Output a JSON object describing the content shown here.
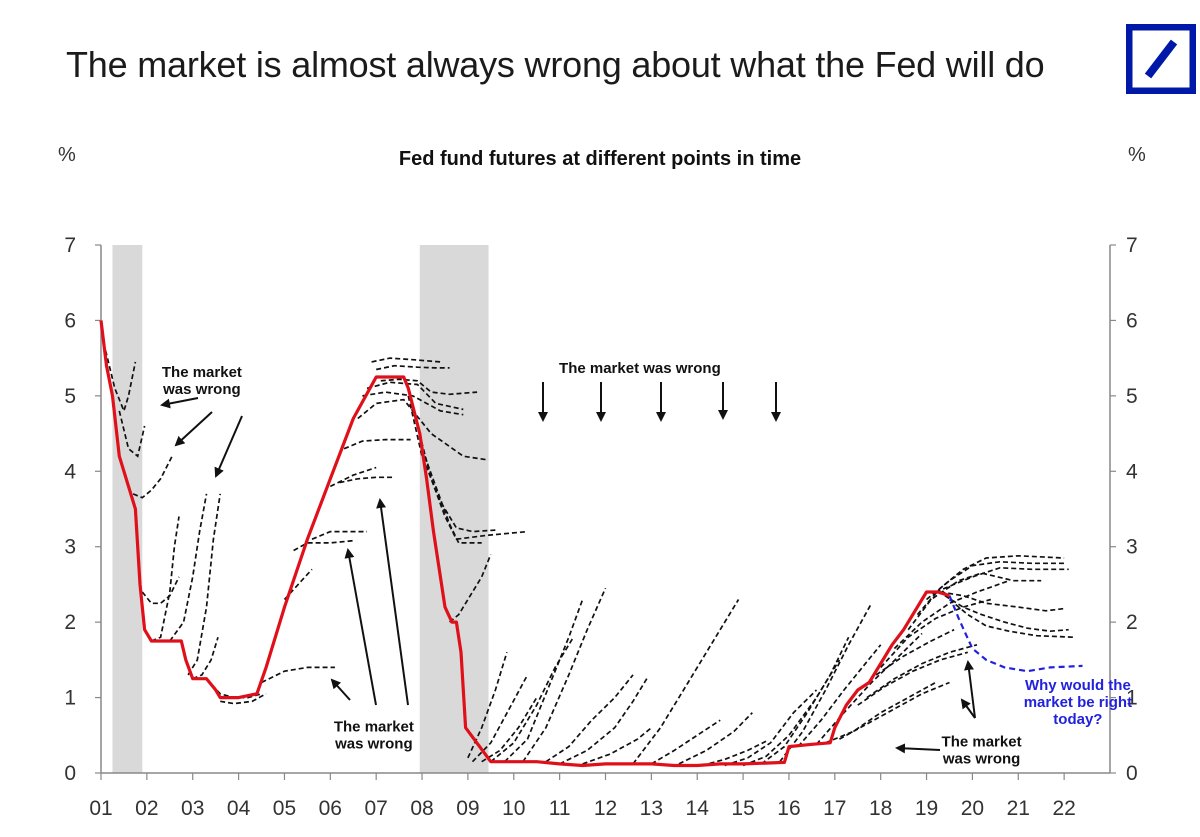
{
  "headline": "The market is almost always wrong about what the Fed will do",
  "logo_icon": "deutsche-bank-logo-icon",
  "colors": {
    "policy": "#e0101a",
    "futures": "#111111",
    "current": "#2222dd",
    "recession": "#d9d9d9",
    "logo": "#0018a8"
  },
  "chart_data": {
    "type": "line",
    "title": "Fed fund futures at different points in time",
    "ylabel_left": "%",
    "ylabel_right": "%",
    "xlabel": "",
    "xlim": [
      2001,
      2023
    ],
    "ylim": [
      0,
      7
    ],
    "x_tick_labels": [
      "01",
      "02",
      "03",
      "04",
      "05",
      "06",
      "07",
      "08",
      "09",
      "10",
      "11",
      "12",
      "13",
      "14",
      "15",
      "16",
      "17",
      "18",
      "19",
      "20",
      "21",
      "22"
    ],
    "y_ticks": [
      0,
      1,
      2,
      3,
      4,
      5,
      6,
      7
    ],
    "grid": false,
    "recessions": [
      [
        2001.25,
        2001.9
      ],
      [
        2007.95,
        2009.45
      ]
    ],
    "annotations": [
      {
        "text": "The market\nwas wrong",
        "x": 2003.2,
        "y": 5.25
      },
      {
        "text": "The market was wrong",
        "x": 2012.75,
        "y": 5.3
      },
      {
        "text": "The market\nwas wrong",
        "x": 2006.95,
        "y": 0.55
      },
      {
        "text": "The market\nwas wrong",
        "x": 2020.2,
        "y": 0.35
      },
      {
        "text": "Why would the\nmarket be right\ntoday?",
        "x": 2022.3,
        "y": 1.1,
        "color": "current"
      }
    ],
    "series": [
      {
        "role": "policy",
        "x": [
          2001.0,
          2001.12,
          2001.25,
          2001.4,
          2001.55,
          2001.75,
          2001.85,
          2001.95,
          2002.1,
          2002.5,
          2002.75,
          2002.85,
          2003.0,
          2003.3,
          2003.5,
          2003.6,
          2004.0,
          2004.4,
          2004.6,
          2005.0,
          2005.5,
          2006.0,
          2006.5,
          2007.0,
          2007.6,
          2007.7,
          2007.95,
          2008.1,
          2008.25,
          2008.35,
          2008.5,
          2008.65,
          2008.75,
          2008.85,
          2008.95,
          2009.5,
          2010.0,
          2010.5,
          2011.0,
          2011.5,
          2012.0,
          2012.5,
          2013.0,
          2013.5,
          2014.0,
          2014.5,
          2015.0,
          2015.9,
          2016.0,
          2016.5,
          2016.9,
          2017.0,
          2017.25,
          2017.5,
          2017.75,
          2018.0,
          2018.25,
          2018.5,
          2018.75,
          2019.0,
          2019.25,
          2019.5
        ],
        "y": [
          6.0,
          5.4,
          5.0,
          4.2,
          3.9,
          3.5,
          2.5,
          1.9,
          1.75,
          1.75,
          1.75,
          1.5,
          1.25,
          1.25,
          1.1,
          1.0,
          1.0,
          1.05,
          1.4,
          2.2,
          3.1,
          3.9,
          4.7,
          5.25,
          5.25,
          5.1,
          4.5,
          3.9,
          3.2,
          2.8,
          2.2,
          2.0,
          2.0,
          1.6,
          0.6,
          0.15,
          0.15,
          0.15,
          0.12,
          0.1,
          0.12,
          0.12,
          0.12,
          0.1,
          0.1,
          0.12,
          0.12,
          0.14,
          0.35,
          0.38,
          0.4,
          0.6,
          0.9,
          1.1,
          1.2,
          1.45,
          1.7,
          1.9,
          2.15,
          2.4,
          2.4,
          2.35
        ]
      },
      {
        "role": "current",
        "x": [
          2019.5,
          2019.7,
          2019.85,
          2020.0,
          2020.3,
          2020.7,
          2021.2,
          2021.7,
          2022.4
        ],
        "y": [
          2.35,
          2.05,
          1.85,
          1.65,
          1.5,
          1.4,
          1.35,
          1.4,
          1.42
        ]
      },
      {
        "role": "futures",
        "x": [
          2001.1,
          2001.3,
          2001.5,
          2001.6,
          2001.75
        ],
        "y": [
          5.6,
          5.1,
          4.8,
          5.0,
          5.45
        ]
      },
      {
        "role": "futures",
        "x": [
          2001.4,
          2001.6,
          2001.8,
          2001.95
        ],
        "y": [
          4.8,
          4.3,
          4.2,
          4.6
        ]
      },
      {
        "role": "futures",
        "x": [
          2001.7,
          2001.9,
          2002.1,
          2002.3,
          2002.55
        ],
        "y": [
          3.7,
          3.65,
          3.75,
          3.9,
          4.2
        ]
      },
      {
        "role": "futures",
        "x": [
          2001.9,
          2002.1,
          2002.3,
          2002.5,
          2002.7
        ],
        "y": [
          2.4,
          2.25,
          2.25,
          2.35,
          2.6
        ]
      },
      {
        "role": "futures",
        "x": [
          2002.1,
          2002.3,
          2002.5,
          2002.6,
          2002.7
        ],
        "y": [
          1.75,
          1.8,
          2.4,
          3.0,
          3.4
        ]
      },
      {
        "role": "futures",
        "x": [
          2002.5,
          2002.8,
          2003.0,
          2003.15,
          2003.3
        ],
        "y": [
          1.75,
          2.0,
          2.6,
          3.2,
          3.7
        ]
      },
      {
        "role": "futures",
        "x": [
          2002.9,
          2003.1,
          2003.3,
          2003.45,
          2003.6
        ],
        "y": [
          1.3,
          1.5,
          2.2,
          3.1,
          3.7
        ]
      },
      {
        "role": "futures",
        "x": [
          2003.0,
          2003.2,
          2003.4,
          2003.55
        ],
        "y": [
          1.25,
          1.3,
          1.5,
          1.8
        ]
      },
      {
        "role": "futures",
        "x": [
          2003.3,
          2003.6,
          2003.9,
          2004.2,
          2004.5
        ],
        "y": [
          1.25,
          1.05,
          1.0,
          1.0,
          1.05
        ]
      },
      {
        "role": "futures",
        "x": [
          2003.6,
          2003.9,
          2004.3,
          2004.6
        ],
        "y": [
          0.95,
          0.92,
          0.95,
          1.05
        ]
      },
      {
        "role": "futures",
        "x": [
          2004.5,
          2005.0,
          2005.5,
          2006.0,
          2006.1
        ],
        "y": [
          1.2,
          1.35,
          1.4,
          1.4,
          1.4
        ]
      },
      {
        "role": "futures",
        "x": [
          2005.0,
          2005.3,
          2005.6
        ],
        "y": [
          2.3,
          2.5,
          2.7
        ]
      },
      {
        "role": "futures",
        "x": [
          2005.2,
          2005.5,
          2006.0,
          2006.5
        ],
        "y": [
          2.95,
          3.05,
          3.05,
          3.08
        ]
      },
      {
        "role": "futures",
        "x": [
          2005.6,
          2006.0,
          2006.4,
          2006.8
        ],
        "y": [
          3.1,
          3.2,
          3.2,
          3.2
        ]
      },
      {
        "role": "futures",
        "x": [
          2006.0,
          2006.5,
          2007.0
        ],
        "y": [
          3.8,
          3.95,
          4.05
        ]
      },
      {
        "role": "futures",
        "x": [
          2006.2,
          2006.6,
          2007.0,
          2007.35
        ],
        "y": [
          3.85,
          3.9,
          3.92,
          3.92
        ]
      },
      {
        "role": "futures",
        "x": [
          2006.3,
          2006.7,
          2007.2,
          2007.75
        ],
        "y": [
          4.3,
          4.4,
          4.42,
          4.42
        ]
      },
      {
        "role": "futures",
        "x": [
          2006.6,
          2007.0,
          2007.6,
          2008.2,
          2008.9,
          2009.45
        ],
        "y": [
          4.7,
          4.9,
          4.95,
          4.5,
          4.2,
          4.15
        ]
      },
      {
        "role": "futures",
        "x": [
          2006.7,
          2007.2,
          2007.8,
          2008.4,
          2008.9
        ],
        "y": [
          5.0,
          5.05,
          5.0,
          4.8,
          4.75
        ]
      },
      {
        "role": "futures",
        "x": [
          2006.8,
          2007.3,
          2007.9,
          2008.3,
          2008.9
        ],
        "y": [
          5.1,
          5.18,
          5.15,
          4.9,
          4.82
        ]
      },
      {
        "role": "futures",
        "x": [
          2007.1,
          2007.5,
          2007.9,
          2008.2,
          2008.6,
          2009.2
        ],
        "y": [
          5.2,
          5.22,
          5.2,
          5.05,
          5.02,
          5.05
        ]
      },
      {
        "role": "futures",
        "x": [
          2007.0,
          2007.4,
          2007.9,
          2008.3,
          2008.6
        ],
        "y": [
          5.35,
          5.4,
          5.38,
          5.37,
          5.37
        ]
      },
      {
        "role": "futures",
        "x": [
          2006.9,
          2007.3,
          2007.8,
          2008.4
        ],
        "y": [
          5.45,
          5.5,
          5.48,
          5.45
        ]
      },
      {
        "role": "futures",
        "x": [
          2007.7,
          2008.0,
          2008.4,
          2008.75,
          2009.1,
          2009.6
        ],
        "y": [
          5.0,
          4.2,
          3.6,
          3.25,
          3.2,
          3.22
        ]
      },
      {
        "role": "futures",
        "x": [
          2007.9,
          2008.2,
          2008.5,
          2008.75,
          2009.4,
          2010.3
        ],
        "y": [
          4.6,
          3.9,
          3.4,
          3.1,
          3.15,
          3.2
        ]
      },
      {
        "role": "futures",
        "x": [
          2008.0,
          2008.3,
          2008.6,
          2008.8,
          2009.3
        ],
        "y": [
          4.3,
          3.8,
          3.3,
          3.05,
          3.05
        ]
      },
      {
        "role": "futures",
        "x": [
          2008.6,
          2008.8,
          2009.0,
          2009.3,
          2009.5
        ],
        "y": [
          2.0,
          2.1,
          2.3,
          2.6,
          2.9
        ]
      },
      {
        "role": "futures",
        "x": [
          2009.0,
          2009.3,
          2009.6,
          2009.85
        ],
        "y": [
          0.2,
          0.6,
          1.1,
          1.6
        ]
      },
      {
        "role": "futures",
        "x": [
          2009.1,
          2009.5,
          2009.9,
          2010.3
        ],
        "y": [
          0.15,
          0.4,
          0.85,
          1.3
        ]
      },
      {
        "role": "futures",
        "x": [
          2009.3,
          2009.7,
          2010.1,
          2010.5
        ],
        "y": [
          0.15,
          0.3,
          0.6,
          1.0
        ]
      },
      {
        "role": "futures",
        "x": [
          2009.5,
          2010.0,
          2010.5,
          2010.9,
          2011.3
        ],
        "y": [
          0.15,
          0.4,
          0.9,
          1.4,
          1.8
        ]
      },
      {
        "role": "futures",
        "x": [
          2009.8,
          2010.3,
          2010.8,
          2011.2,
          2011.5
        ],
        "y": [
          0.15,
          0.45,
          1.2,
          1.8,
          2.3
        ]
      },
      {
        "role": "futures",
        "x": [
          2010.2,
          2010.7,
          2011.2,
          2011.6,
          2012.0
        ],
        "y": [
          0.15,
          0.6,
          1.3,
          1.9,
          2.45
        ]
      },
      {
        "role": "futures",
        "x": [
          2010.7,
          2011.2,
          2011.7,
          2012.2,
          2012.6
        ],
        "y": [
          0.15,
          0.35,
          0.7,
          1.0,
          1.3
        ]
      },
      {
        "role": "futures",
        "x": [
          2011.0,
          2011.6,
          2012.2,
          2012.6,
          2012.9
        ],
        "y": [
          0.12,
          0.3,
          0.6,
          0.95,
          1.25
        ]
      },
      {
        "role": "futures",
        "x": [
          2011.5,
          2012.1,
          2012.7,
          2013.0
        ],
        "y": [
          0.12,
          0.25,
          0.45,
          0.6
        ]
      },
      {
        "role": "futures",
        "x": [
          2012.6,
          2013.2,
          2013.8,
          2014.4,
          2014.9
        ],
        "y": [
          0.12,
          0.6,
          1.2,
          1.8,
          2.3
        ]
      },
      {
        "role": "futures",
        "x": [
          2013.0,
          2013.5,
          2014.0,
          2014.5
        ],
        "y": [
          0.12,
          0.3,
          0.5,
          0.7
        ]
      },
      {
        "role": "futures",
        "x": [
          2013.6,
          2014.2,
          2014.8,
          2015.2
        ],
        "y": [
          0.12,
          0.3,
          0.55,
          0.8
        ]
      },
      {
        "role": "futures",
        "x": [
          2014.1,
          2014.6,
          2015.1,
          2015.5
        ],
        "y": [
          0.1,
          0.18,
          0.3,
          0.42
        ]
      },
      {
        "role": "futures",
        "x": [
          2014.6,
          2015.1,
          2015.6,
          2016.1,
          2016.6
        ],
        "y": [
          0.1,
          0.2,
          0.4,
          0.8,
          1.1
        ]
      },
      {
        "role": "futures",
        "x": [
          2015.0,
          2015.5,
          2016.0,
          2016.6,
          2017.1
        ],
        "y": [
          0.1,
          0.22,
          0.5,
          1.0,
          1.5
        ]
      },
      {
        "role": "futures",
        "x": [
          2015.4,
          2015.9,
          2016.4,
          2016.9,
          2017.3
        ],
        "y": [
          0.12,
          0.35,
          0.8,
          1.3,
          1.8
        ]
      },
      {
        "role": "futures",
        "x": [
          2015.8,
          2016.3,
          2016.8,
          2017.3,
          2017.8
        ],
        "y": [
          0.15,
          0.55,
          1.1,
          1.7,
          2.25
        ]
      },
      {
        "role": "futures",
        "x": [
          2016.2,
          2016.7,
          2017.2,
          2017.6,
          2018.0
        ],
        "y": [
          0.35,
          0.7,
          1.1,
          1.4,
          1.7
        ]
      },
      {
        "role": "futures",
        "x": [
          2016.6,
          2017.2,
          2017.8,
          2018.4,
          2018.9
        ],
        "y": [
          0.38,
          0.8,
          1.2,
          1.55,
          1.85
        ]
      },
      {
        "role": "futures",
        "x": [
          2016.8,
          2017.4,
          2018.0,
          2018.6,
          2019.2
        ],
        "y": [
          0.4,
          0.55,
          0.8,
          1.0,
          1.2
        ]
      },
      {
        "role": "futures",
        "x": [
          2017.1,
          2017.7,
          2018.3,
          2018.9,
          2019.5
        ],
        "y": [
          0.45,
          0.65,
          0.85,
          1.05,
          1.2
        ]
      },
      {
        "role": "futures",
        "x": [
          2017.5,
          2018.1,
          2018.7,
          2019.3,
          2019.9
        ],
        "y": [
          0.9,
          1.15,
          1.35,
          1.5,
          1.6
        ]
      },
      {
        "role": "futures",
        "x": [
          2017.7,
          2018.3,
          2018.9,
          2019.5,
          2020.1
        ],
        "y": [
          1.0,
          1.25,
          1.45,
          1.6,
          1.7
        ]
      },
      {
        "role": "futures",
        "x": [
          2017.9,
          2018.5,
          2019.1,
          2019.6
        ],
        "y": [
          1.3,
          1.55,
          1.75,
          1.9
        ]
      },
      {
        "role": "futures",
        "x": [
          2018.0,
          2018.6,
          2019.2,
          2019.8,
          2020.4
        ],
        "y": [
          1.4,
          1.8,
          2.05,
          2.2,
          2.3
        ]
      },
      {
        "role": "futures",
        "x": [
          2018.3,
          2018.9,
          2019.5,
          2020.1,
          2020.8
        ],
        "y": [
          1.65,
          2.0,
          2.25,
          2.4,
          2.55
        ]
      },
      {
        "role": "futures",
        "x": [
          2018.6,
          2019.1,
          2019.7,
          2020.2,
          2020.9,
          2021.5
        ],
        "y": [
          1.9,
          2.3,
          2.55,
          2.65,
          2.55,
          2.55
        ]
      },
      {
        "role": "futures",
        "x": [
          2018.8,
          2019.3,
          2019.8,
          2020.3,
          2021.0,
          2022.0
        ],
        "y": [
          2.1,
          2.45,
          2.7,
          2.85,
          2.88,
          2.85
        ]
      },
      {
        "role": "futures",
        "x": [
          2019.0,
          2019.5,
          2020.0,
          2020.6,
          2021.3,
          2022.0
        ],
        "y": [
          2.3,
          2.55,
          2.75,
          2.8,
          2.78,
          2.78
        ]
      },
      {
        "role": "futures",
        "x": [
          2019.2,
          2019.6,
          2020.0,
          2020.6,
          2021.3,
          2022.1
        ],
        "y": [
          2.4,
          2.5,
          2.6,
          2.72,
          2.7,
          2.7
        ]
      },
      {
        "role": "futures",
        "x": [
          2019.3,
          2019.8,
          2020.3,
          2021.0,
          2021.6,
          2022.0
        ],
        "y": [
          2.4,
          2.35,
          2.25,
          2.2,
          2.15,
          2.18
        ]
      },
      {
        "role": "futures",
        "x": [
          2019.4,
          2019.8,
          2020.2,
          2020.7,
          2021.2,
          2021.7,
          2022.1
        ],
        "y": [
          2.35,
          2.2,
          2.1,
          2.0,
          1.92,
          1.88,
          1.9
        ]
      },
      {
        "role": "futures",
        "x": [
          2019.5,
          2019.9,
          2020.3,
          2020.8,
          2021.4,
          2022.2
        ],
        "y": [
          2.3,
          2.1,
          1.95,
          1.88,
          1.82,
          1.8
        ]
      }
    ]
  }
}
